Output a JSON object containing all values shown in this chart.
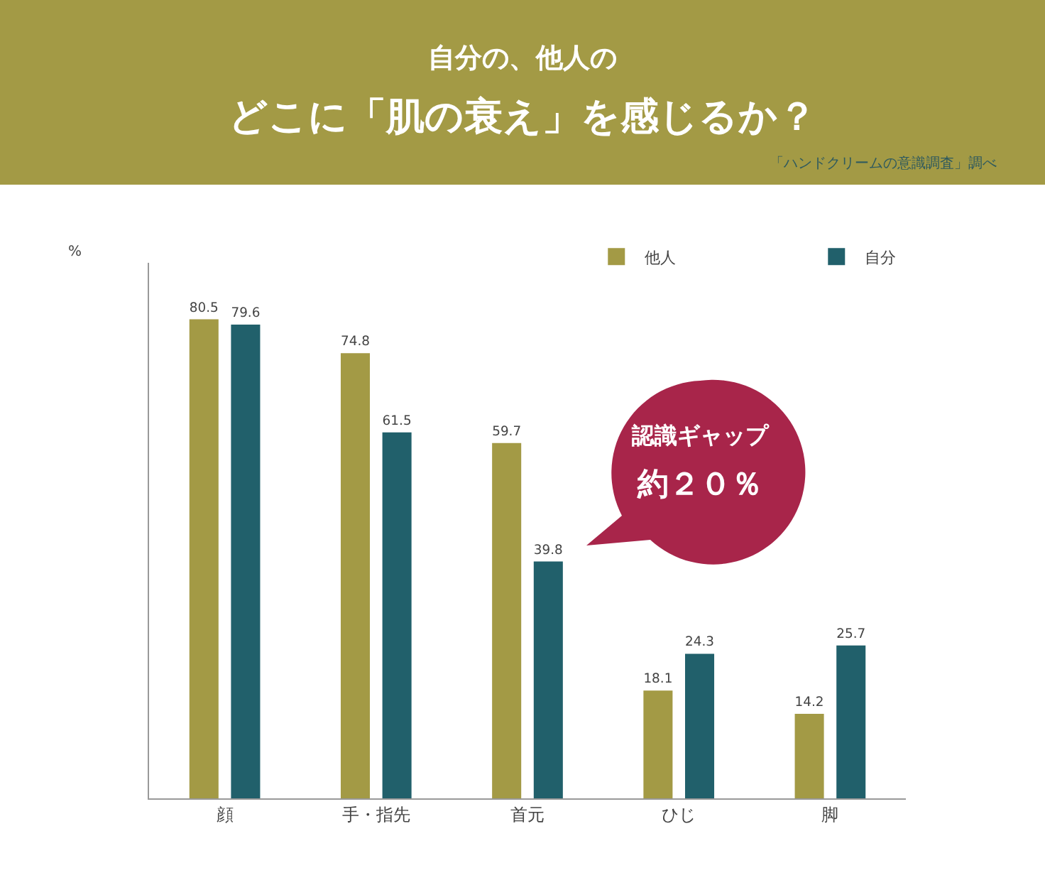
{
  "chart_data": {
    "type": "bar",
    "subtitle": "自分の、他人の",
    "title": "どこに「肌の衰え」を感じるか？",
    "ylabel": "%",
    "categories": [
      "顔",
      "手・指先",
      "首元",
      "ひじ",
      "脚"
    ],
    "series": [
      {
        "name": "他人",
        "color": "#a39a45",
        "values": [
          80.5,
          74.8,
          59.7,
          18.1,
          14.2
        ]
      },
      {
        "name": "自分",
        "color": "#21606b",
        "values": [
          79.6,
          61.5,
          39.8,
          24.3,
          25.7
        ]
      }
    ],
    "ylim": [
      0,
      90
    ],
    "data_labels": true,
    "tick_labels": "x",
    "grid": false,
    "legend": "top right",
    "annotations": [
      "「ハンドクリームの意識調査」調べ",
      "認識ギャップ",
      "約２０％"
    ]
  }
}
